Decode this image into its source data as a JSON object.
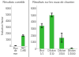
{
  "chart_data": [
    {
      "type": "bar",
      "title": "Résultats contrôle",
      "categories": [
        "Eau\nde\nmer",
        "TBT\n1 nM"
      ],
      "values": [
        80,
        1700
      ],
      "errors": [
        15,
        120
      ],
      "colors": [
        "#c0c0c0",
        "#33bb33"
      ],
      "ylabel": "Induction factor",
      "ylim": [
        0,
        6500
      ],
      "yticks": [
        0,
        1000,
        2000,
        3000,
        4000,
        5000,
        6000
      ],
      "grid": false
    },
    {
      "type": "bar",
      "title": "Résultats sur les eaux de chantier",
      "categories": [
        "Brut\n1/1",
        "Dilution\n1/10",
        "Dilution\n1/100",
        "Dilution\n1/1000"
      ],
      "values": [
        3500,
        5100,
        1700,
        120
      ],
      "errors": [
        300,
        280,
        680,
        40
      ],
      "color": "#33bb33",
      "ylim": [
        0,
        6500
      ],
      "yticks": [
        0,
        1000,
        2000,
        3000,
        4000,
        5000,
        6000
      ],
      "grid": false
    }
  ]
}
